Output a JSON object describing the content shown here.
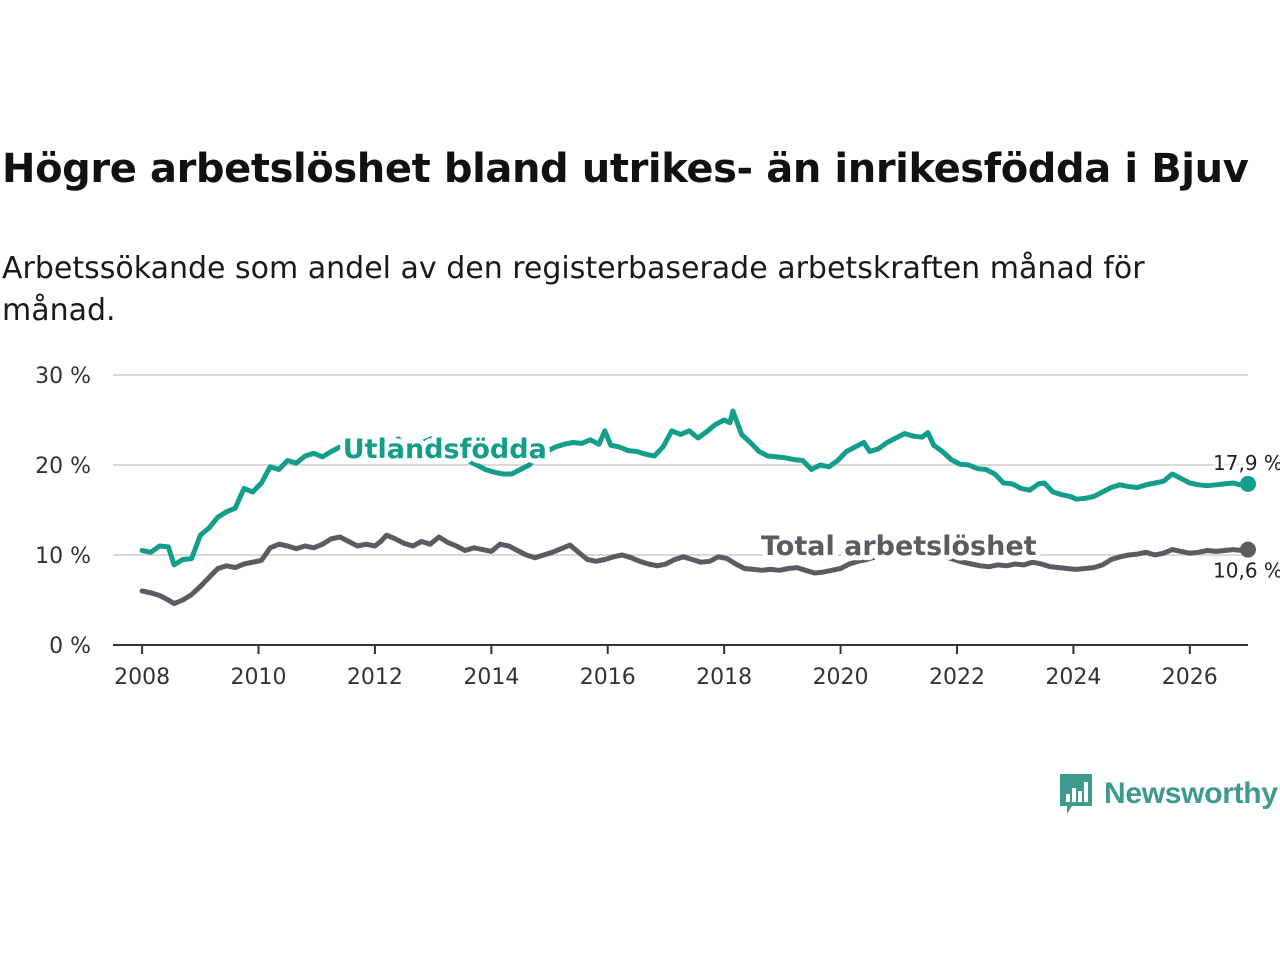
{
  "title": "Högre arbetslöshet bland utrikes- än inrikesfödda i Bjuv",
  "subtitle": "Arbetssökande som andel av den registerbaserade arbetskraften månad för månad.",
  "brand": {
    "name": "Newsworthy",
    "icon": "newsworthy-logo-icon",
    "color": "#3f9a8e"
  },
  "chart_data": {
    "type": "line",
    "title": "Högre arbetslöshet bland utrikes- än inrikesfödda i Bjuv",
    "xlabel": "",
    "ylabel": "",
    "xlim": [
      2007.5,
      2027.0
    ],
    "ylim": [
      0,
      30
    ],
    "x_ticks": [
      2008,
      2010,
      2012,
      2014,
      2016,
      2018,
      2020,
      2022,
      2024,
      2026
    ],
    "x_tick_labels": [
      "2008",
      "2010",
      "2012",
      "2014",
      "2016",
      "2018",
      "2020",
      "2022",
      "2024",
      "2026"
    ],
    "y_ticks": [
      0,
      10,
      20,
      30
    ],
    "y_tick_labels": [
      "0 %",
      "10 %",
      "20 %",
      "30 %"
    ],
    "grid": true,
    "series": [
      {
        "name": "Utlandsfödda",
        "color": "#139e8b",
        "end_label": "17,9 %",
        "points": [
          [
            2008.0,
            10.5
          ],
          [
            2008.15,
            10.3
          ],
          [
            2008.3,
            11.0
          ],
          [
            2008.45,
            10.9
          ],
          [
            2008.55,
            8.9
          ],
          [
            2008.7,
            9.5
          ],
          [
            2008.85,
            9.6
          ],
          [
            2009.0,
            12.2
          ],
          [
            2009.15,
            13.0
          ],
          [
            2009.3,
            14.2
          ],
          [
            2009.45,
            14.8
          ],
          [
            2009.6,
            15.2
          ],
          [
            2009.75,
            17.4
          ],
          [
            2009.9,
            17.0
          ],
          [
            2010.05,
            18.0
          ],
          [
            2010.2,
            19.8
          ],
          [
            2010.35,
            19.5
          ],
          [
            2010.5,
            20.5
          ],
          [
            2010.65,
            20.2
          ],
          [
            2010.8,
            21.0
          ],
          [
            2010.95,
            21.3
          ],
          [
            2011.1,
            20.9
          ],
          [
            2011.25,
            21.5
          ],
          [
            2011.4,
            22.0
          ],
          [
            2011.55,
            22.1
          ],
          [
            2011.7,
            22.5
          ],
          [
            2011.85,
            22.0
          ],
          [
            2012.0,
            22.5
          ],
          [
            2012.1,
            21.7
          ],
          [
            2012.2,
            22.6
          ],
          [
            2012.3,
            22.3
          ],
          [
            2012.4,
            22.9
          ],
          [
            2012.55,
            21.8
          ],
          [
            2012.7,
            22.2
          ],
          [
            2012.85,
            22.6
          ],
          [
            2013.0,
            23.0
          ],
          [
            2013.15,
            22.4
          ],
          [
            2013.3,
            22.0
          ],
          [
            2013.45,
            21.0
          ],
          [
            2013.6,
            20.5
          ],
          [
            2013.75,
            20.0
          ],
          [
            2013.9,
            19.5
          ],
          [
            2014.05,
            19.2
          ],
          [
            2014.2,
            19.0
          ],
          [
            2014.35,
            19.0
          ],
          [
            2014.5,
            19.5
          ],
          [
            2014.65,
            20.0
          ],
          [
            2014.8,
            21.0
          ],
          [
            2014.95,
            21.5
          ],
          [
            2015.1,
            22.0
          ],
          [
            2015.25,
            22.3
          ],
          [
            2015.4,
            22.5
          ],
          [
            2015.55,
            22.4
          ],
          [
            2015.7,
            22.8
          ],
          [
            2015.85,
            22.3
          ],
          [
            2015.95,
            23.8
          ],
          [
            2016.05,
            22.2
          ],
          [
            2016.2,
            22.0
          ],
          [
            2016.35,
            21.6
          ],
          [
            2016.5,
            21.5
          ],
          [
            2016.65,
            21.2
          ],
          [
            2016.8,
            21.0
          ],
          [
            2016.95,
            22.0
          ],
          [
            2017.1,
            23.8
          ],
          [
            2017.25,
            23.4
          ],
          [
            2017.4,
            23.8
          ],
          [
            2017.55,
            23.0
          ],
          [
            2017.7,
            23.7
          ],
          [
            2017.85,
            24.5
          ],
          [
            2018.0,
            25.0
          ],
          [
            2018.1,
            24.7
          ],
          [
            2018.15,
            26.0
          ],
          [
            2018.3,
            23.4
          ],
          [
            2018.45,
            22.5
          ],
          [
            2018.6,
            21.5
          ],
          [
            2018.75,
            21.0
          ],
          [
            2018.9,
            20.9
          ],
          [
            2019.05,
            20.8
          ],
          [
            2019.2,
            20.6
          ],
          [
            2019.35,
            20.5
          ],
          [
            2019.5,
            19.5
          ],
          [
            2019.65,
            20.0
          ],
          [
            2019.8,
            19.8
          ],
          [
            2019.95,
            20.5
          ],
          [
            2020.1,
            21.5
          ],
          [
            2020.25,
            22.0
          ],
          [
            2020.4,
            22.5
          ],
          [
            2020.5,
            21.5
          ],
          [
            2020.65,
            21.8
          ],
          [
            2020.8,
            22.5
          ],
          [
            2020.95,
            23.0
          ],
          [
            2021.1,
            23.5
          ],
          [
            2021.25,
            23.2
          ],
          [
            2021.4,
            23.1
          ],
          [
            2021.5,
            23.6
          ],
          [
            2021.6,
            22.2
          ],
          [
            2021.75,
            21.5
          ],
          [
            2021.9,
            20.6
          ],
          [
            2022.05,
            20.1
          ],
          [
            2022.2,
            20.0
          ],
          [
            2022.35,
            19.6
          ],
          [
            2022.5,
            19.5
          ],
          [
            2022.65,
            19.0
          ],
          [
            2022.8,
            18.0
          ],
          [
            2022.95,
            17.9
          ],
          [
            2023.1,
            17.4
          ],
          [
            2023.25,
            17.2
          ],
          [
            2023.4,
            17.9
          ],
          [
            2023.5,
            18.0
          ],
          [
            2023.65,
            17.0
          ],
          [
            2023.8,
            16.7
          ],
          [
            2023.95,
            16.5
          ],
          [
            2024.05,
            16.2
          ],
          [
            2024.2,
            16.3
          ],
          [
            2024.35,
            16.5
          ],
          [
            2024.5,
            17.0
          ],
          [
            2024.65,
            17.5
          ],
          [
            2024.8,
            17.8
          ],
          [
            2024.95,
            17.6
          ],
          [
            2025.1,
            17.5
          ],
          [
            2025.25,
            17.8
          ],
          [
            2025.4,
            18.0
          ],
          [
            2025.55,
            18.2
          ],
          [
            2025.7,
            19.0
          ],
          [
            2025.85,
            18.5
          ],
          [
            2026.0,
            18.0
          ],
          [
            2026.15,
            17.8
          ],
          [
            2026.3,
            17.7
          ],
          [
            2026.45,
            17.8
          ],
          [
            2026.6,
            17.9
          ],
          [
            2026.75,
            18.0
          ],
          [
            2026.85,
            17.8
          ],
          [
            2027.0,
            17.9
          ]
        ]
      },
      {
        "name": "Total arbetslöshet",
        "color": "#5b5b63",
        "end_label": "10,6 %",
        "points": [
          [
            2008.0,
            6.0
          ],
          [
            2008.15,
            5.8
          ],
          [
            2008.3,
            5.5
          ],
          [
            2008.45,
            5.0
          ],
          [
            2008.55,
            4.6
          ],
          [
            2008.7,
            5.0
          ],
          [
            2008.85,
            5.6
          ],
          [
            2009.0,
            6.5
          ],
          [
            2009.15,
            7.5
          ],
          [
            2009.3,
            8.5
          ],
          [
            2009.45,
            8.8
          ],
          [
            2009.6,
            8.6
          ],
          [
            2009.75,
            9.0
          ],
          [
            2009.9,
            9.2
          ],
          [
            2010.05,
            9.4
          ],
          [
            2010.2,
            10.8
          ],
          [
            2010.35,
            11.2
          ],
          [
            2010.5,
            11.0
          ],
          [
            2010.65,
            10.7
          ],
          [
            2010.8,
            11.0
          ],
          [
            2010.95,
            10.8
          ],
          [
            2011.1,
            11.2
          ],
          [
            2011.25,
            11.8
          ],
          [
            2011.4,
            12.0
          ],
          [
            2011.55,
            11.5
          ],
          [
            2011.7,
            11.0
          ],
          [
            2011.85,
            11.2
          ],
          [
            2012.0,
            11.0
          ],
          [
            2012.1,
            11.5
          ],
          [
            2012.2,
            12.2
          ],
          [
            2012.35,
            11.8
          ],
          [
            2012.5,
            11.3
          ],
          [
            2012.65,
            11.0
          ],
          [
            2012.8,
            11.5
          ],
          [
            2012.95,
            11.2
          ],
          [
            2013.1,
            12.0
          ],
          [
            2013.25,
            11.4
          ],
          [
            2013.4,
            11.0
          ],
          [
            2013.55,
            10.5
          ],
          [
            2013.7,
            10.8
          ],
          [
            2013.85,
            10.6
          ],
          [
            2014.0,
            10.4
          ],
          [
            2014.15,
            11.2
          ],
          [
            2014.3,
            11.0
          ],
          [
            2014.45,
            10.5
          ],
          [
            2014.6,
            10.0
          ],
          [
            2014.75,
            9.7
          ],
          [
            2014.9,
            10.0
          ],
          [
            2015.05,
            10.3
          ],
          [
            2015.2,
            10.7
          ],
          [
            2015.35,
            11.1
          ],
          [
            2015.5,
            10.3
          ],
          [
            2015.65,
            9.5
          ],
          [
            2015.8,
            9.3
          ],
          [
            2015.95,
            9.5
          ],
          [
            2016.1,
            9.8
          ],
          [
            2016.25,
            10.0
          ],
          [
            2016.4,
            9.7
          ],
          [
            2016.55,
            9.3
          ],
          [
            2016.7,
            9.0
          ],
          [
            2016.85,
            8.8
          ],
          [
            2017.0,
            9.0
          ],
          [
            2017.15,
            9.5
          ],
          [
            2017.3,
            9.8
          ],
          [
            2017.45,
            9.5
          ],
          [
            2017.6,
            9.2
          ],
          [
            2017.75,
            9.3
          ],
          [
            2017.9,
            9.8
          ],
          [
            2018.05,
            9.6
          ],
          [
            2018.2,
            9.0
          ],
          [
            2018.35,
            8.5
          ],
          [
            2018.5,
            8.4
          ],
          [
            2018.65,
            8.3
          ],
          [
            2018.8,
            8.4
          ],
          [
            2018.95,
            8.3
          ],
          [
            2019.1,
            8.5
          ],
          [
            2019.25,
            8.6
          ],
          [
            2019.4,
            8.3
          ],
          [
            2019.55,
            8.0
          ],
          [
            2019.7,
            8.1
          ],
          [
            2019.85,
            8.3
          ],
          [
            2020.0,
            8.5
          ],
          [
            2020.15,
            9.0
          ],
          [
            2020.3,
            9.3
          ],
          [
            2020.45,
            9.5
          ],
          [
            2020.6,
            9.8
          ],
          [
            2020.75,
            10.0
          ],
          [
            2020.9,
            10.3
          ],
          [
            2021.05,
            10.6
          ],
          [
            2021.2,
            10.4
          ],
          [
            2021.35,
            10.8
          ],
          [
            2021.5,
            10.5
          ],
          [
            2021.65,
            10.2
          ],
          [
            2021.8,
            9.8
          ],
          [
            2021.95,
            9.5
          ],
          [
            2022.1,
            9.2
          ],
          [
            2022.25,
            9.0
          ],
          [
            2022.4,
            8.8
          ],
          [
            2022.55,
            8.7
          ],
          [
            2022.7,
            8.9
          ],
          [
            2022.85,
            8.8
          ],
          [
            2023.0,
            9.0
          ],
          [
            2023.15,
            8.9
          ],
          [
            2023.3,
            9.2
          ],
          [
            2023.45,
            9.0
          ],
          [
            2023.6,
            8.7
          ],
          [
            2023.75,
            8.6
          ],
          [
            2023.9,
            8.5
          ],
          [
            2024.05,
            8.4
          ],
          [
            2024.2,
            8.5
          ],
          [
            2024.35,
            8.6
          ],
          [
            2024.5,
            8.9
          ],
          [
            2024.65,
            9.5
          ],
          [
            2024.8,
            9.8
          ],
          [
            2024.95,
            10.0
          ],
          [
            2025.1,
            10.1
          ],
          [
            2025.25,
            10.3
          ],
          [
            2025.4,
            10.0
          ],
          [
            2025.55,
            10.2
          ],
          [
            2025.7,
            10.6
          ],
          [
            2025.85,
            10.4
          ],
          [
            2026.0,
            10.2
          ],
          [
            2026.15,
            10.3
          ],
          [
            2026.3,
            10.5
          ],
          [
            2026.45,
            10.4
          ],
          [
            2026.6,
            10.5
          ],
          [
            2026.75,
            10.6
          ],
          [
            2026.9,
            10.5
          ],
          [
            2027.0,
            10.6
          ]
        ]
      }
    ],
    "annotations": [
      {
        "text": "Utlandsfödda",
        "series": "Utlandsfödda"
      },
      {
        "text": "Total arbetslöshet",
        "series": "Total arbetslöshet"
      }
    ]
  }
}
